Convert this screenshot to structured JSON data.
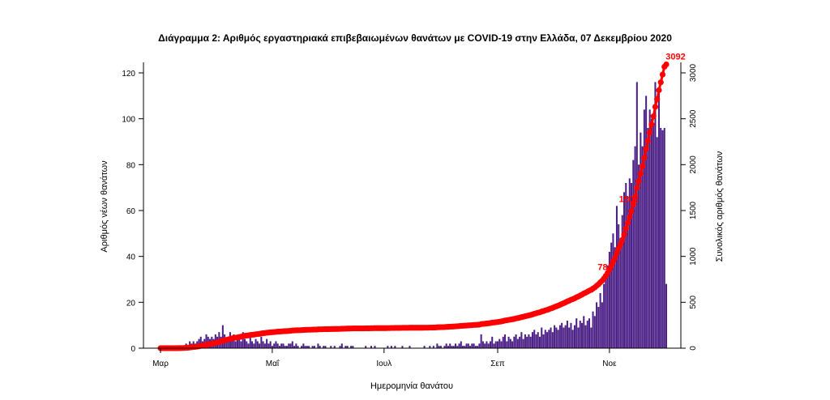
{
  "chart_data": {
    "type": "bar",
    "title": "Διάγραμμα 2: Αριθμός εργαστηριακά επιβεβαιωμένων θανάτων με COVID-19 στην Ελλάδα, 07 Δεκεμβρίου 2020",
    "xlabel": "Ημερομηνία θανάτου",
    "ylabel_left": "Αριθμός νέων θανάτων",
    "ylabel_right": "Συνολικός αριθμός θανάτων",
    "ylim_left": [
      0,
      120
    ],
    "ylim_right": [
      0,
      3000
    ],
    "yticks_left": [
      "0",
      "20",
      "40",
      "60",
      "80",
      "100",
      "120"
    ],
    "yticks_right": [
      "0",
      "500",
      "1000",
      "1500",
      "2000",
      "2500",
      "3000"
    ],
    "x_tick_labels": [
      "Μαρ",
      "Μαΐ",
      "Ιουλ",
      "Σεπ",
      "Νοε"
    ],
    "grid": false,
    "legend": "none",
    "series": [
      {
        "kind": "bar",
        "color": "#4b1f86",
        "start_date": "2020-03-01",
        "daily_values": [
          0,
          0,
          0,
          0,
          0,
          0,
          0,
          0,
          0,
          0,
          1,
          0,
          1,
          1,
          2,
          1,
          3,
          2,
          3,
          2,
          3,
          4,
          5,
          3,
          4,
          6,
          5,
          4,
          5,
          4,
          6,
          5,
          7,
          5,
          10,
          6,
          4,
          5,
          7,
          5,
          6,
          3,
          4,
          5,
          3,
          7,
          4,
          3,
          2,
          5,
          3,
          2,
          4,
          3,
          2,
          5,
          3,
          2,
          4,
          2,
          3,
          1,
          2,
          3,
          2,
          1,
          2,
          2,
          1,
          1,
          2,
          2,
          3,
          1,
          2,
          1,
          0,
          1,
          2,
          1,
          1,
          1,
          0,
          1,
          1,
          0,
          2,
          1,
          0,
          1,
          1,
          0,
          0,
          1,
          0,
          1,
          0,
          0,
          1,
          2,
          0,
          1,
          1,
          0,
          1,
          1,
          0,
          0,
          0,
          0,
          0,
          0,
          1,
          0,
          0,
          1,
          0,
          1,
          0,
          0,
          0,
          0,
          0,
          0,
          1,
          0,
          1,
          0,
          1,
          0,
          0,
          0,
          1,
          0,
          0,
          0,
          1,
          0,
          0,
          0,
          0,
          0,
          0,
          0,
          1,
          0,
          0,
          1,
          0,
          1,
          0,
          2,
          1,
          1,
          0,
          1,
          2,
          1,
          2,
          1,
          1,
          2,
          1,
          2,
          3,
          1,
          1,
          2,
          2,
          1,
          2,
          2,
          1,
          1,
          2,
          6,
          3,
          2,
          3,
          2,
          3,
          5,
          2,
          3,
          3,
          4,
          3,
          5,
          6,
          3,
          5,
          4,
          3,
          5,
          6,
          4,
          5,
          7,
          4,
          6,
          5,
          6,
          5,
          7,
          8,
          6,
          7,
          5,
          9,
          6,
          8,
          7,
          8,
          9,
          7,
          10,
          9,
          8,
          10,
          11,
          9,
          10,
          12,
          9,
          11,
          8,
          10,
          13,
          9,
          12,
          11,
          14,
          10,
          12,
          13,
          9,
          16,
          14,
          20,
          18,
          24,
          20,
          28,
          32,
          36,
          42,
          46,
          50,
          44,
          62,
          54,
          48,
          58,
          68,
          72,
          66,
          74,
          72,
          82,
          88,
          116,
          80,
          94,
          88,
          104,
          110,
          96,
          104,
          100,
          98,
          116,
          92,
          112,
          96,
          95,
          96,
          28
        ]
      },
      {
        "kind": "cumulative-line",
        "color": "#ff0000",
        "axis": "right",
        "start_date": "2020-03-01",
        "final_value": 3092
      }
    ],
    "annotations": [
      {
        "label": "78",
        "axis": "right",
        "date": "2020-10-31",
        "value": 800
      },
      {
        "label": "1502",
        "axis": "right",
        "date": "2020-11-17",
        "value": 1540
      },
      {
        "label": "3092",
        "axis": "right",
        "date": "2020-12-07",
        "value": 3092
      }
    ]
  }
}
